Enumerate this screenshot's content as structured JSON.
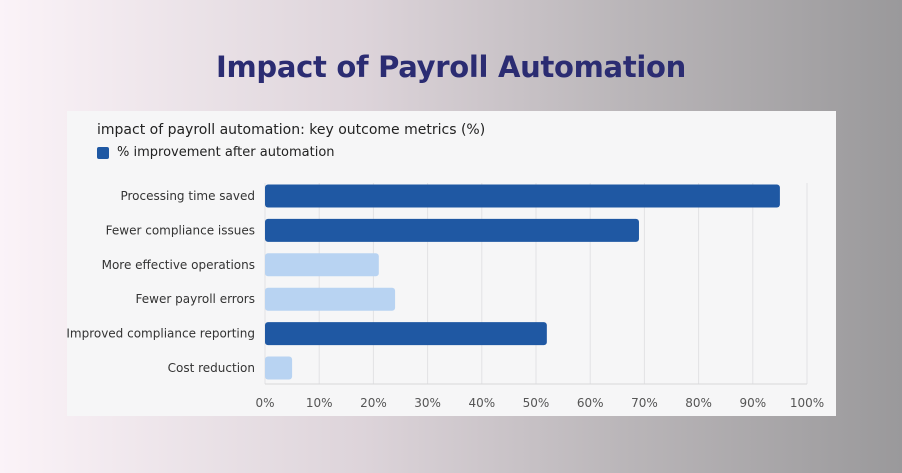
{
  "header": {
    "title": "Impact of Payroll Automation"
  },
  "chart_data": {
    "type": "bar",
    "orientation": "horizontal",
    "title": "impact of payroll automation: key outcome metrics (%)",
    "legend": [
      "% improvement after automation"
    ],
    "categories": [
      "Processing time saved",
      "Fewer compliance issues",
      "More effective operations",
      "Fewer payroll errors",
      "Improved compliance reporting",
      "Cost reduction"
    ],
    "values": [
      95,
      69,
      21,
      24,
      52,
      5
    ],
    "bar_colors": [
      "#1f58a3",
      "#1f58a3",
      "#b8d3f2",
      "#b8d3f2",
      "#1f58a3",
      "#b8d3f2"
    ],
    "xlim": [
      0,
      100
    ],
    "xticks": [
      "0%",
      "10%",
      "20%",
      "30%",
      "40%",
      "50%",
      "60%",
      "70%",
      "80%",
      "90%",
      "100%"
    ],
    "grid": true
  }
}
